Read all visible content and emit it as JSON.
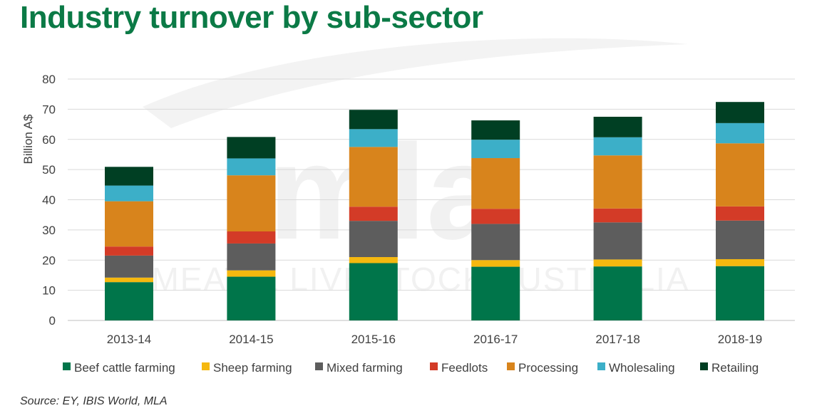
{
  "title": "Industry turnover by sub-sector",
  "source": "Source: EY, IBIS World, MLA",
  "watermark_text": "MEAT & LIVESTOCK AUSTRALIA",
  "chart_data": {
    "type": "bar",
    "stacked": true,
    "title": "",
    "xlabel": "",
    "ylabel": "Billion A$",
    "ylim": [
      0,
      80
    ],
    "yticks": [
      0,
      10,
      20,
      30,
      40,
      50,
      60,
      70,
      80
    ],
    "grid": true,
    "legend_position": "bottom",
    "categories": [
      "2013-14",
      "2014-15",
      "2015-16",
      "2016-17",
      "2017-18",
      "2018-19"
    ],
    "series": [
      {
        "name": "Beef cattle farming",
        "color": "#00754a",
        "values": [
          12.7,
          14.5,
          19.0,
          17.8,
          17.9,
          18.0
        ]
      },
      {
        "name": "Sheep farming",
        "color": "#f5b80f",
        "values": [
          1.5,
          2.1,
          2.0,
          2.2,
          2.3,
          2.3
        ]
      },
      {
        "name": "Mixed farming",
        "color": "#5d5d5d",
        "values": [
          7.3,
          8.9,
          12.0,
          12.0,
          12.3,
          12.8
        ]
      },
      {
        "name": "Feedlots",
        "color": "#d33b27",
        "values": [
          3.0,
          4.0,
          4.7,
          5.0,
          4.6,
          4.7
        ]
      },
      {
        "name": "Processing",
        "color": "#d8841c",
        "values": [
          15.0,
          18.6,
          19.8,
          16.8,
          17.6,
          20.9
        ]
      },
      {
        "name": "Wholesaling",
        "color": "#3cafc8",
        "values": [
          5.2,
          5.6,
          5.9,
          6.1,
          6.0,
          6.7
        ]
      },
      {
        "name": "Retailing",
        "color": "#003f23",
        "values": [
          6.2,
          7.1,
          6.4,
          6.4,
          6.8,
          7.0
        ]
      }
    ]
  }
}
